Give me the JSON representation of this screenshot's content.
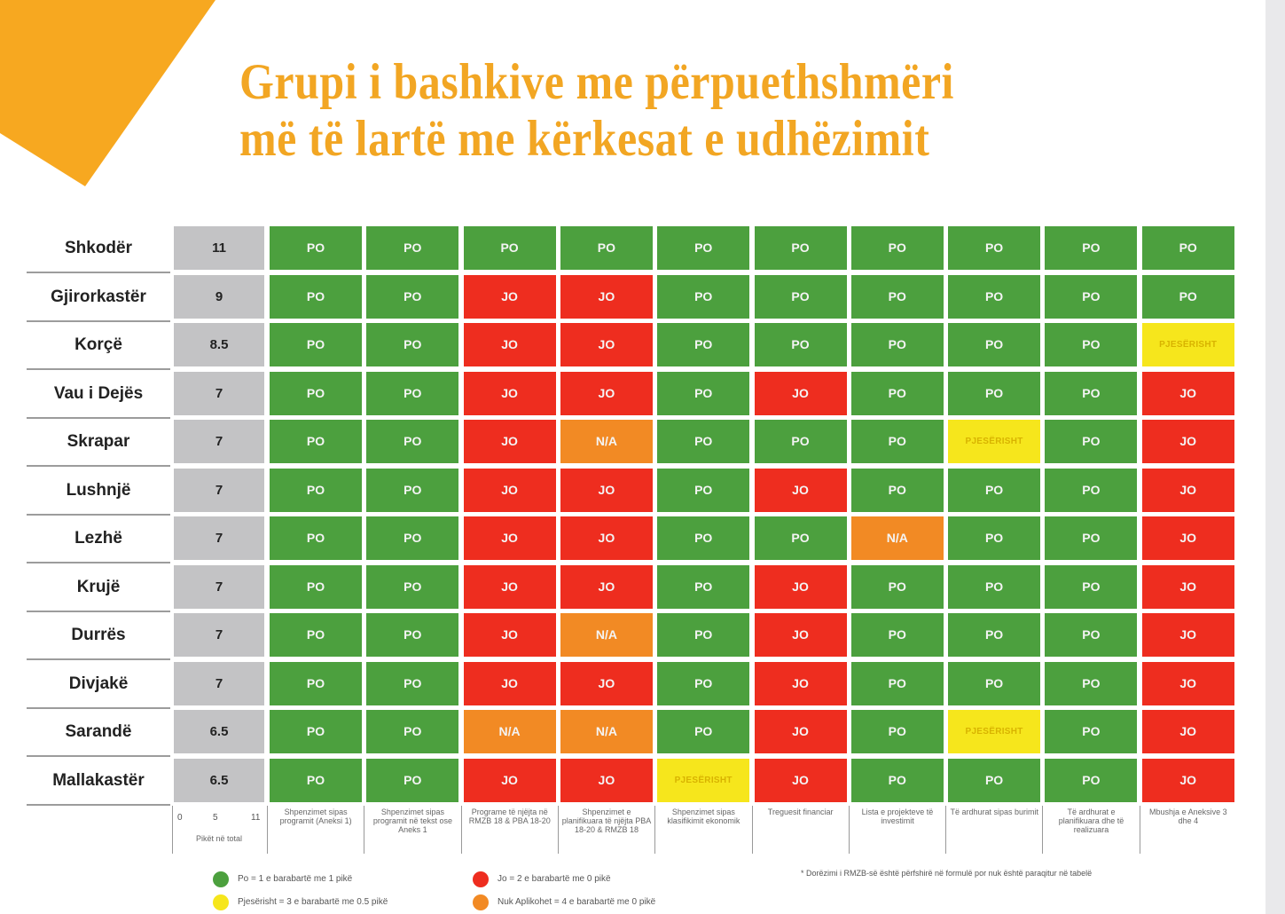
{
  "title_line1": "Grupi i bashkive me përpuethshmëri",
  "title_line2": "më të lartë me kërkesat e udhëzimit",
  "colors": {
    "PO": "#4ca03e",
    "JO": "#ee2d1f",
    "N/A": "#f28a24",
    "PJESËRISHT": "#f6e61c",
    "score_bg": "#c3c3c5",
    "title": "#f2a623",
    "corner": "#f7a820"
  },
  "chart_data": {
    "type": "table",
    "score_axis": {
      "ticks": [
        "0",
        "5",
        "11"
      ],
      "label": "Pikët në total"
    },
    "columns": [
      "Shpenzimet sipas programit (Aneksi 1)",
      "Shpenzimet sipas programit në tekst ose Aneks 1",
      "Programe të njëjta në RMZB 18 & PBA 18-20",
      "Shpenzimet e planifikuara të njëjta PBA 18-20 & RMZB 18",
      "Shpenzimet sipas klasifikimit ekonomik",
      "Treguesit financiar",
      "Lista e projekteve të investimit",
      "Të ardhurat sipas burimit",
      "Të ardhurat e planifikuara dhe të realizuara",
      "Mbushja e Aneksive 3 dhe 4"
    ],
    "rows": [
      {
        "name": "Shkodër",
        "score": "11",
        "values": [
          "PO",
          "PO",
          "PO",
          "PO",
          "PO",
          "PO",
          "PO",
          "PO",
          "PO",
          "PO"
        ]
      },
      {
        "name": "Gjirorkastër",
        "score": "9",
        "values": [
          "PO",
          "PO",
          "JO",
          "JO",
          "PO",
          "PO",
          "PO",
          "PO",
          "PO",
          "PO"
        ]
      },
      {
        "name": "Korçë",
        "score": "8.5",
        "values": [
          "PO",
          "PO",
          "JO",
          "JO",
          "PO",
          "PO",
          "PO",
          "PO",
          "PO",
          "PJESËRISHT"
        ]
      },
      {
        "name": "Vau i Dejës",
        "score": "7",
        "values": [
          "PO",
          "PO",
          "JO",
          "JO",
          "PO",
          "JO",
          "PO",
          "PO",
          "PO",
          "JO"
        ]
      },
      {
        "name": "Skrapar",
        "score": "7",
        "values": [
          "PO",
          "PO",
          "JO",
          "N/A",
          "PO",
          "PO",
          "PO",
          "PJESËRISHT",
          "PO",
          "JO"
        ]
      },
      {
        "name": "Lushnjë",
        "score": "7",
        "values": [
          "PO",
          "PO",
          "JO",
          "JO",
          "PO",
          "JO",
          "PO",
          "PO",
          "PO",
          "JO"
        ]
      },
      {
        "name": "Lezhë",
        "score": "7",
        "values": [
          "PO",
          "PO",
          "JO",
          "JO",
          "PO",
          "PO",
          "N/A",
          "PO",
          "PO",
          "JO"
        ]
      },
      {
        "name": "Krujë",
        "score": "7",
        "values": [
          "PO",
          "PO",
          "JO",
          "JO",
          "PO",
          "JO",
          "PO",
          "PO",
          "PO",
          "JO"
        ]
      },
      {
        "name": "Durrës",
        "score": "7",
        "values": [
          "PO",
          "PO",
          "JO",
          "N/A",
          "PO",
          "JO",
          "PO",
          "PO",
          "PO",
          "JO"
        ]
      },
      {
        "name": "Divjakë",
        "score": "7",
        "values": [
          "PO",
          "PO",
          "JO",
          "JO",
          "PO",
          "JO",
          "PO",
          "PO",
          "PO",
          "JO"
        ]
      },
      {
        "name": "Sarandë",
        "score": "6.5",
        "values": [
          "PO",
          "PO",
          "N/A",
          "N/A",
          "PO",
          "JO",
          "PO",
          "PJESËRISHT",
          "PO",
          "JO"
        ]
      },
      {
        "name": "Mallakastër",
        "score": "6.5",
        "values": [
          "PO",
          "PO",
          "JO",
          "JO",
          "PJESËRISHT",
          "JO",
          "PO",
          "PO",
          "PO",
          "JO"
        ]
      }
    ],
    "legend": [
      {
        "key": "PO",
        "label": "Po = 1 e barabartë me 1 pikë"
      },
      {
        "key": "JO",
        "label": "Jo = 2 e barabartë me 0 pikë"
      },
      {
        "key": "PJESËRISHT",
        "label": "Pjesërisht = 3 e barabartë me 0.5 pikë"
      },
      {
        "key": "N/A",
        "label": "Nuk Aplikohet = 4 e barabartë me 0 pikë"
      }
    ],
    "footnote": "* Dorëzimi i RMZB-së është përfshirë në formulë por nuk është paraqitur në tabelë"
  }
}
